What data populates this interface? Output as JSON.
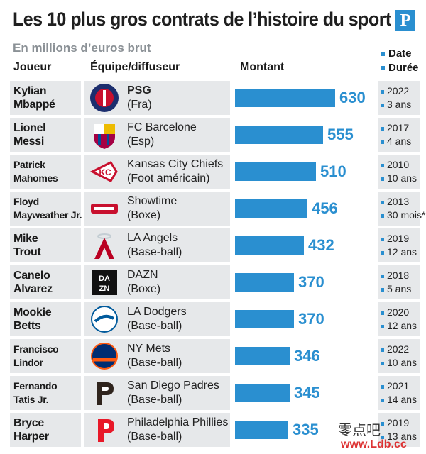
{
  "header": {
    "title": "Les 10 plus gros contrats de l’histoire du sport",
    "subtitle": "En millions d’euros brut",
    "logo_letter": "P",
    "col_player": "Joueur",
    "col_team": "Équipe/diffuseur",
    "col_amount": "Montant",
    "legend_date": "Date",
    "legend_duration": "Durée"
  },
  "colors": {
    "accent": "#2a8fd0",
    "row_bg": "#e6e8ea"
  },
  "watermark": {
    "line1": "零点吧",
    "line2": "www.Ldb.cc"
  },
  "chart_data": {
    "type": "bar",
    "title": "Les 10 plus gros contrats de l’histoire du sport",
    "subtitle": "En millions d’euros brut",
    "xlabel": "Montant",
    "categories": [
      "Kylian Mbappé",
      "Lionel Messi",
      "Patrick Mahomes",
      "Floyd Mayweather Jr.",
      "Mike Trout",
      "Canelo Alvarez",
      "Mookie Betts",
      "Francisco Lindor",
      "Fernando Tatis Jr.",
      "Bryce Harper"
    ],
    "values": [
      630,
      555,
      510,
      456,
      432,
      370,
      370,
      346,
      345,
      335
    ],
    "rows": [
      {
        "player": "Kylian\nMbappé",
        "team": "PSG",
        "team_detail": "(Fra)",
        "logo": "psg-logo",
        "value": "630",
        "date": "2022",
        "duration": "3 ans"
      },
      {
        "player": "Lionel\nMessi",
        "team": "FC Barcelone",
        "team_detail": "(Esp)",
        "logo": "fc-barcelone-logo",
        "value": "555",
        "date": "2017",
        "duration": "4 ans"
      },
      {
        "player": "Patrick\nMahomes",
        "team": "Kansas City Chiefs",
        "team_detail": "(Foot américain)",
        "logo": "kansas-city-chiefs-logo",
        "value": "510",
        "date": "2010",
        "duration": "10 ans"
      },
      {
        "player": "Floyd\nMayweather Jr.",
        "team": "Showtime",
        "team_detail": "(Boxe)",
        "logo": "showtime-logo",
        "value": "456",
        "date": "2013",
        "duration": "30 mois*"
      },
      {
        "player": "Mike\nTrout",
        "team": "LA Angels",
        "team_detail": "(Base-ball)",
        "logo": "la-angels-logo",
        "value": "432",
        "date": "2019",
        "duration": "12 ans"
      },
      {
        "player": "Canelo\nAlvarez",
        "team": "DAZN",
        "team_detail": "(Boxe)",
        "logo": "dazn-logo",
        "value": "370",
        "date": "2018",
        "duration": "5 ans"
      },
      {
        "player": "Mookie\nBetts",
        "team": "LA Dodgers",
        "team_detail": "(Base-ball)",
        "logo": "la-dodgers-logo",
        "value": "370",
        "date": "2020",
        "duration": "12 ans"
      },
      {
        "player": "Francisco\nLindor",
        "team": "NY Mets",
        "team_detail": "(Base-ball)",
        "logo": "ny-mets-logo",
        "value": "346",
        "date": "2022",
        "duration": "10 ans"
      },
      {
        "player": "Fernando\nTatis Jr.",
        "team": "San Diego Padres",
        "team_detail": "(Base-ball)",
        "logo": "san-diego-padres-logo",
        "value": "345",
        "date": "2021",
        "duration": "14 ans"
      },
      {
        "player": "Bryce\nHarper",
        "team": "Philadelphia Phillies",
        "team_detail": "(Base-ball)",
        "logo": "philadelphia-phillies-logo",
        "value": "335",
        "date": "2019",
        "duration": "13 ans"
      }
    ]
  }
}
